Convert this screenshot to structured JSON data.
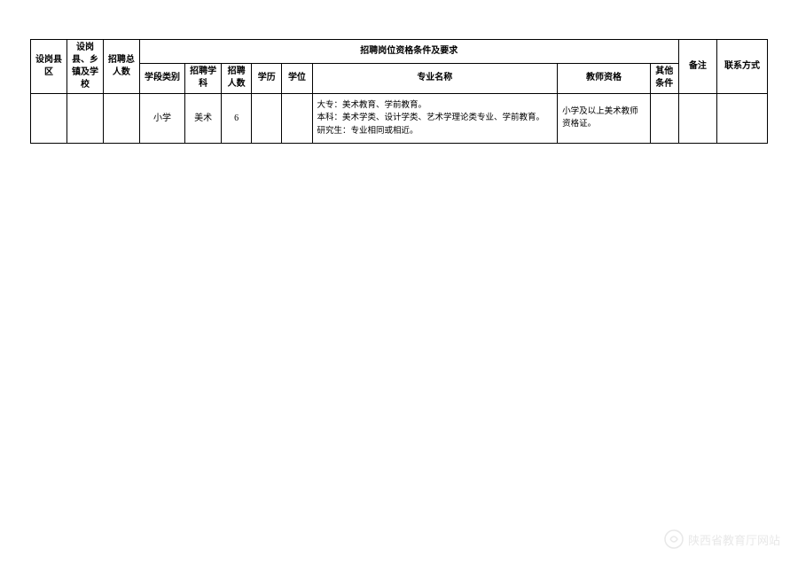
{
  "table": {
    "headers": {
      "county": "设岗县区",
      "township": "设岗县、乡镇及学校",
      "total": "招聘总人数",
      "requirements_group": "招聘岗位资格条件及要求",
      "stage": "学段类别",
      "subject": "招聘学科",
      "count": "招聘人数",
      "education": "学历",
      "degree": "学位",
      "major": "专业名称",
      "qualification": "教师资格",
      "other": "其他条件",
      "note": "备注",
      "contact": "联系方式"
    },
    "rows": [
      {
        "county": "",
        "township": "",
        "total": "",
        "stage": "小学",
        "subject": "美术",
        "count": "6",
        "education": "",
        "degree": "",
        "major": "大专：美术教育、学前教育。\n本科：美术学类、设计学类、艺术学理论类专业、学前教育。\n研究生：专业相同或相近。",
        "qualification": "小学及以上美术教师资格证。",
        "other": "",
        "note": "",
        "contact": ""
      }
    ]
  },
  "watermark": {
    "text": "陕西省教育厅网站"
  },
  "styling": {
    "border_color": "#000000",
    "background_color": "#ffffff",
    "font_family": "SimSun",
    "header_fontsize": 10,
    "cell_fontsize": 9.5,
    "watermark_color": "#e8e8e8"
  }
}
